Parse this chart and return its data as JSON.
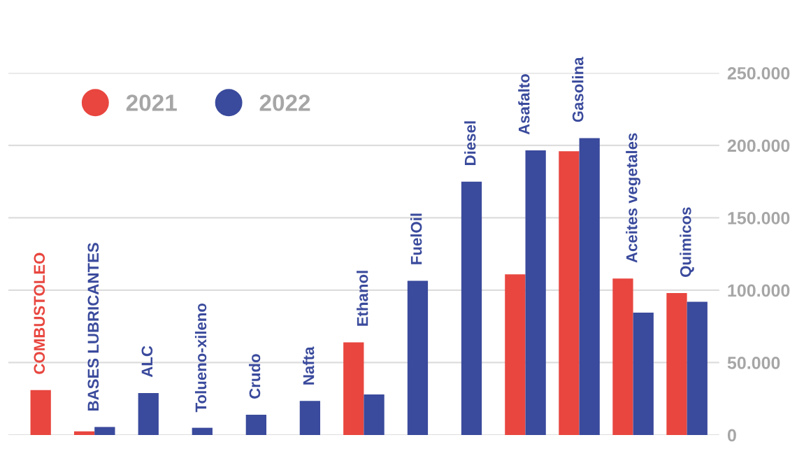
{
  "chart_data": {
    "type": "bar",
    "categories": [
      "COMBUSTOLEO",
      "BASES LUBRICANTES",
      "ALC",
      "Tolueno-xileno",
      "Crudo",
      "Nafta",
      "Ethanol",
      "FuelOil",
      "Diesel",
      "Asafalto",
      "Gasolina",
      "Aceites vegetales",
      "Quimicos"
    ],
    "series": [
      {
        "name": "2021",
        "color": "#e8463f",
        "values": [
          31000,
          2500,
          null,
          null,
          null,
          null,
          64000,
          null,
          null,
          111000,
          196000,
          108000,
          98000
        ]
      },
      {
        "name": "2022",
        "color": "#3a4a9c",
        "values": [
          null,
          5500,
          29000,
          5000,
          14000,
          23500,
          28000,
          106500,
          175000,
          196500,
          205000,
          84500,
          92000
        ]
      }
    ],
    "ylim": [
      0,
      250000
    ],
    "yticks": [
      {
        "value": 0,
        "label": "0"
      },
      {
        "value": 50000,
        "label": "50.000"
      },
      {
        "value": 100000,
        "label": "100.000"
      },
      {
        "value": 150000,
        "label": "150.000"
      },
      {
        "value": 200000,
        "label": "200.000"
      },
      {
        "value": 250000,
        "label": "250.000"
      }
    ],
    "grid": "y",
    "legend": "top left",
    "marker": "circle",
    "tick_labels": "y"
  }
}
